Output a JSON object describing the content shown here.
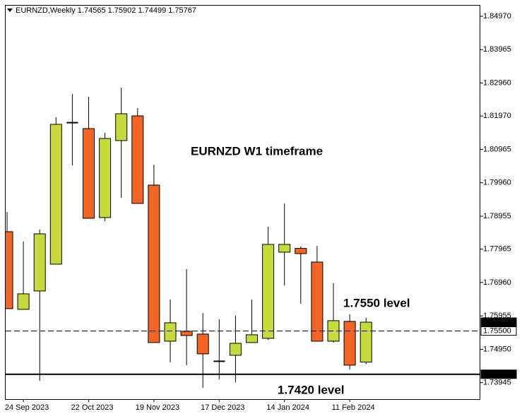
{
  "chart_data": {
    "type": "candlestick",
    "title": "EURNZD,Weekly  1.74565 1.75902 1.74499 1.75767",
    "categories": [
      null,
      "24 Sep 2023",
      null,
      null,
      null,
      "22 Oct 2023",
      null,
      null,
      null,
      "19 Nov 2023",
      null,
      null,
      null,
      "17 Dec 2023",
      null,
      null,
      null,
      "14 Jan 2024",
      null,
      null,
      null,
      "11 Feb 2024",
      null
    ],
    "open": [
      1.78489,
      1.76152,
      1.76704,
      1.77511,
      1.8178,
      1.81591,
      1.78914,
      1.8123,
      1.81974,
      1.79891,
      1.75195,
      1.75493,
      1.75408,
      1.7458,
      1.7477,
      1.75153,
      1.7528,
      1.77873,
      1.7799,
      1.77575,
      1.75195,
      1.7579,
      1.74565
    ],
    "high": [
      1.79084,
      1.78192,
      1.78553,
      1.81931,
      1.82633,
      1.82548,
      1.81464,
      1.82824,
      1.82208,
      1.80508,
      1.76449,
      1.77363,
      1.76045,
      1.75854,
      1.7596,
      1.76449,
      1.78638,
      1.79339,
      1.78043,
      1.78064,
      1.76938,
      1.76003,
      1.75902
    ],
    "low": [
      1.7617,
      1.7615,
      1.74004,
      1.7751,
      1.80486,
      1.7889,
      1.78808,
      1.79509,
      1.7934,
      1.7515,
      1.74558,
      1.74473,
      1.73793,
      1.74048,
      1.73963,
      1.7515,
      1.75238,
      1.76874,
      1.76321,
      1.7519,
      1.75153,
      1.74345,
      1.74499
    ],
    "close": [
      1.76173,
      1.76619,
      1.78425,
      1.81719,
      1.8176,
      1.78893,
      1.81294,
      1.82038,
      1.79339,
      1.75153,
      1.75748,
      1.75365,
      1.74813,
      1.746,
      1.75131,
      1.75387,
      1.78106,
      1.78106,
      1.7783,
      1.75195,
      1.75812,
      1.74473,
      1.75767
    ],
    "up_color": "#c6da3b",
    "down_color": "#f26522",
    "ylim": [
      1.7345,
      1.8529
    ],
    "yticks": [
      {
        "value": 1.8497,
        "label": "1.84970"
      },
      {
        "value": 1.83965,
        "label": "1.83965"
      },
      {
        "value": 1.8296,
        "label": "1.82960"
      },
      {
        "value": 1.8197,
        "label": "1.81970"
      },
      {
        "value": 1.80965,
        "label": "1.80965"
      },
      {
        "value": 1.7996,
        "label": "1.79960"
      },
      {
        "value": 1.78955,
        "label": "1.78955"
      },
      {
        "value": 1.77965,
        "label": "1.77965"
      },
      {
        "value": 1.7696,
        "label": "1.76960"
      },
      {
        "value": 1.75955,
        "label": "1.75955"
      },
      {
        "value": 1.7495,
        "label": "1.74950"
      },
      {
        "value": 1.73945,
        "label": "1.73945"
      }
    ],
    "last_price": 1.75767,
    "hlines": [
      {
        "value": 1.755,
        "label": "1.75500",
        "style": "dashed"
      },
      {
        "value": 1.742,
        "label": "1.74200",
        "style": "solid"
      }
    ],
    "annotations": [
      "EURNZD W1 timeframe",
      "1.7550 level",
      "1.7420 level"
    ]
  }
}
